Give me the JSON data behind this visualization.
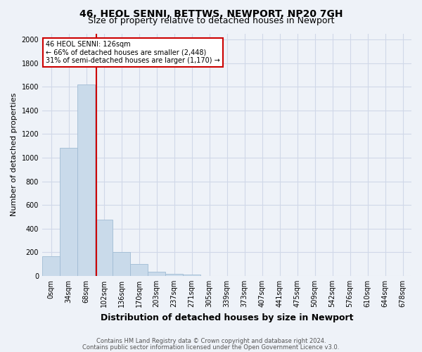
{
  "title1": "46, HEOL SENNI, BETTWS, NEWPORT, NP20 7GH",
  "title2": "Size of property relative to detached houses in Newport",
  "xlabel": "Distribution of detached houses by size in Newport",
  "ylabel": "Number of detached properties",
  "categories": [
    "0sqm",
    "34sqm",
    "68sqm",
    "102sqm",
    "136sqm",
    "170sqm",
    "203sqm",
    "237sqm",
    "271sqm",
    "305sqm",
    "339sqm",
    "373sqm",
    "407sqm",
    "441sqm",
    "475sqm",
    "509sqm",
    "542sqm",
    "576sqm",
    "610sqm",
    "644sqm",
    "678sqm"
  ],
  "bar_values": [
    165,
    1080,
    1620,
    475,
    200,
    100,
    35,
    15,
    10,
    0,
    0,
    0,
    0,
    0,
    0,
    0,
    0,
    0,
    0,
    0,
    0
  ],
  "bar_color": "#c9daea",
  "bar_edge_color": "#a0bcd4",
  "property_line_color": "#cc0000",
  "annotation_text": "46 HEOL SENNI: 126sqm\n← 66% of detached houses are smaller (2,448)\n31% of semi-detached houses are larger (1,170) →",
  "annotation_box_color": "#ffffff",
  "annotation_box_edge_color": "#cc0000",
  "ylim": [
    0,
    2050
  ],
  "yticks": [
    0,
    200,
    400,
    600,
    800,
    1000,
    1200,
    1400,
    1600,
    1800,
    2000
  ],
  "grid_color": "#d0d8e8",
  "bg_color": "#eef2f8",
  "title1_fontsize": 10,
  "title2_fontsize": 9,
  "xlabel_fontsize": 9,
  "ylabel_fontsize": 8,
  "tick_fontsize": 7,
  "annotation_fontsize": 7,
  "footnote1": "Contains HM Land Registry data © Crown copyright and database right 2024.",
  "footnote2": "Contains public sector information licensed under the Open Government Licence v3.0.",
  "footnote_fontsize": 6
}
